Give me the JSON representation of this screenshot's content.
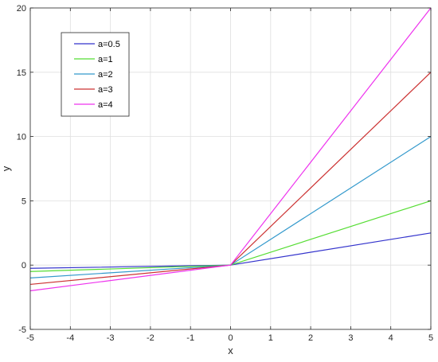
{
  "chart_data": {
    "type": "line",
    "title": "",
    "xlabel": "x",
    "ylabel": "y",
    "xlim": [
      -5,
      5
    ],
    "ylim": [
      -5,
      20
    ],
    "xticks": [
      -5,
      -4,
      -3,
      -2,
      -1,
      0,
      1,
      2,
      3,
      4,
      5
    ],
    "yticks": [
      -5,
      0,
      5,
      10,
      15,
      20
    ],
    "grid": true,
    "legend_position": "top-left",
    "x": [
      -5,
      0,
      5
    ],
    "series": [
      {
        "name": "a=0.5",
        "color": "#3333cc",
        "values": [
          -0.25,
          0,
          2.5
        ]
      },
      {
        "name": "a=1",
        "color": "#55dd33",
        "values": [
          -0.5,
          0,
          5
        ]
      },
      {
        "name": "a=2",
        "color": "#3399cc",
        "values": [
          -1.0,
          0,
          10
        ]
      },
      {
        "name": "a=3",
        "color": "#cc3333",
        "values": [
          -1.5,
          0,
          15
        ]
      },
      {
        "name": "a=4",
        "color": "#ee33ee",
        "values": [
          -2.0,
          0,
          20
        ]
      }
    ]
  }
}
